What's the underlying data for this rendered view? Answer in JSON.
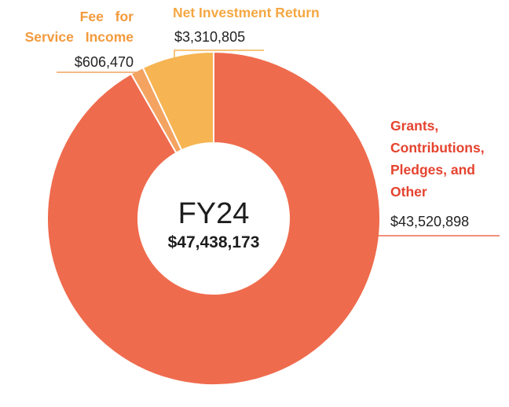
{
  "chart_data": {
    "type": "donut",
    "categories": [
      "Grants, Contributions, Pledges, and Other",
      "Fee for Service Income",
      "Net Investment Return"
    ],
    "values": [
      43520898,
      606470,
      3310805
    ],
    "value_labels": [
      "$43,520,898",
      "$606,470",
      "$3,310,805"
    ],
    "colors": [
      "#ef6b4d",
      "#f4a361",
      "#f6b452"
    ],
    "center_title": "FY24",
    "center_label": "$47,438,173"
  }
}
